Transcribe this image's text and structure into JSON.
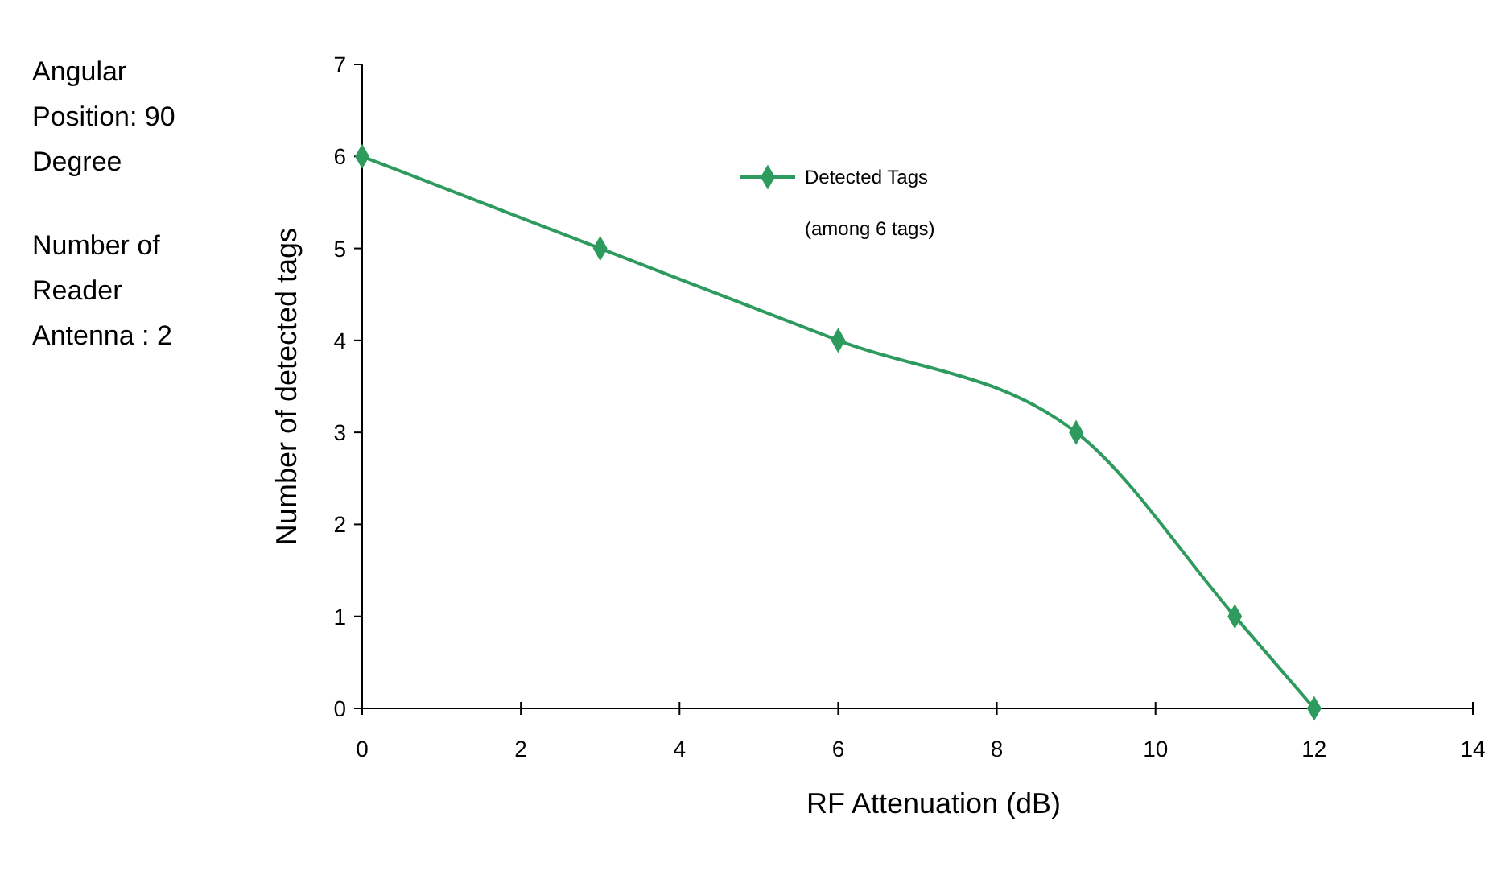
{
  "chart_data": {
    "type": "line",
    "xlabel": "RF Attenuation (dB)",
    "ylabel": "Number of detected tags",
    "x": [
      0,
      3,
      6,
      9,
      11,
      12
    ],
    "series": [
      {
        "name": "Detected Tags",
        "color": "#2e9b5e",
        "values": [
          6,
          5,
          4,
          3,
          1,
          0
        ]
      }
    ],
    "xlim": [
      0,
      14
    ],
    "xticks": [
      0,
      2,
      4,
      6,
      8,
      10,
      12,
      14
    ],
    "ylim": [
      0,
      7
    ],
    "yticks": [
      0,
      1,
      2,
      3,
      4,
      5,
      6,
      7
    ],
    "grid": false,
    "legend": "top",
    "marker": "diamond",
    "line_style": "solid",
    "annotations": [
      "Angular Position: 90 Degree",
      "Number of Reader Antenna : 2",
      "(among 6 tags)"
    ]
  }
}
